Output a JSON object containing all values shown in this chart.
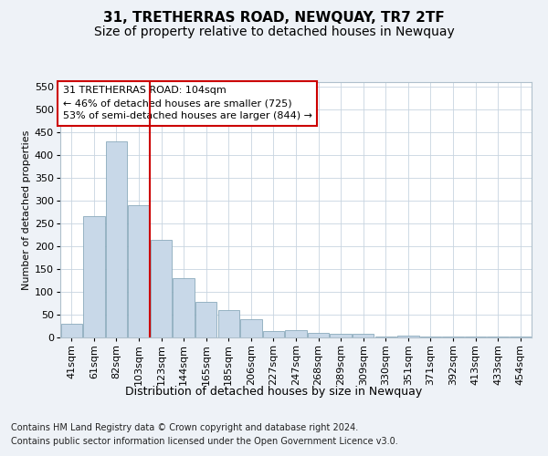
{
  "title": "31, TRETHERRAS ROAD, NEWQUAY, TR7 2TF",
  "subtitle": "Size of property relative to detached houses in Newquay",
  "xlabel": "Distribution of detached houses by size in Newquay",
  "ylabel": "Number of detached properties",
  "categories": [
    "41sqm",
    "61sqm",
    "82sqm",
    "103sqm",
    "123sqm",
    "144sqm",
    "165sqm",
    "185sqm",
    "206sqm",
    "227sqm",
    "247sqm",
    "268sqm",
    "289sqm",
    "309sqm",
    "330sqm",
    "351sqm",
    "371sqm",
    "392sqm",
    "413sqm",
    "433sqm",
    "454sqm"
  ],
  "values": [
    30,
    265,
    430,
    290,
    215,
    130,
    78,
    60,
    40,
    15,
    17,
    10,
    8,
    8,
    2,
    5,
    2,
    2,
    2,
    2,
    2
  ],
  "bar_color": "#c8d8e8",
  "bar_edge_color": "#8aaabb",
  "vline_color": "#cc0000",
  "annotation_box_color": "#ffffff",
  "annotation_box_edge": "#cc0000",
  "annotation_line1": "31 TRETHERRAS ROAD: 104sqm",
  "annotation_line2": "← 46% of detached houses are smaller (725)",
  "annotation_line3": "53% of semi-detached houses are larger (844) →",
  "ylim": [
    0,
    560
  ],
  "yticks": [
    0,
    50,
    100,
    150,
    200,
    250,
    300,
    350,
    400,
    450,
    500,
    550
  ],
  "footer_line1": "Contains HM Land Registry data © Crown copyright and database right 2024.",
  "footer_line2": "Contains public sector information licensed under the Open Government Licence v3.0.",
  "background_color": "#eef2f7",
  "plot_background": "#ffffff",
  "grid_color": "#c8d4e0",
  "title_fontsize": 11,
  "subtitle_fontsize": 10,
  "xlabel_fontsize": 9,
  "ylabel_fontsize": 8,
  "tick_fontsize": 8,
  "annotation_fontsize": 8,
  "footer_fontsize": 7
}
